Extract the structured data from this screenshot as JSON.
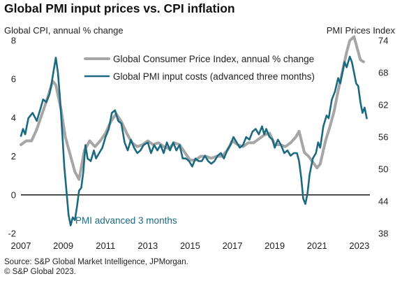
{
  "chart_data": {
    "type": "line",
    "title": "Global PMI input prices vs. CPI inflation",
    "ylabel_left": "Global  CPI, annual % change",
    "ylabel_right": "PMI Prices Index",
    "ylim_left": [
      -2,
      8
    ],
    "ylim_right": [
      38,
      74
    ],
    "yticks_left": [
      "-2",
      "0",
      "2",
      "4",
      "6",
      "8"
    ],
    "yticks_right": [
      "38",
      "44",
      "50",
      "56",
      "62",
      "68",
      "74"
    ],
    "xlim": [
      2007,
      2023.5
    ],
    "xticks": [
      "2007",
      "2009",
      "2011",
      "2013",
      "2015",
      "2017",
      "2019",
      "2021",
      "2023"
    ],
    "zero_line": true,
    "legend_position": "top-center",
    "annotation": "PMI advanced  3 months",
    "series": [
      {
        "name": "Global Consumer Price Index, annual % change",
        "axis": "left",
        "color": "#a6a6a6",
        "points": [
          [
            2007.0,
            2.6
          ],
          [
            2007.25,
            2.8
          ],
          [
            2007.5,
            2.8
          ],
          [
            2007.75,
            3.4
          ],
          [
            2008.0,
            4.2
          ],
          [
            2008.25,
            5.0
          ],
          [
            2008.5,
            5.9
          ],
          [
            2008.65,
            5.7
          ],
          [
            2008.9,
            4.4
          ],
          [
            2009.1,
            3.0
          ],
          [
            2009.35,
            2.0
          ],
          [
            2009.55,
            1.2
          ],
          [
            2009.75,
            0.8
          ],
          [
            2010.0,
            2.3
          ],
          [
            2010.25,
            2.8
          ],
          [
            2010.5,
            2.5
          ],
          [
            2010.75,
            2.8
          ],
          [
            2011.0,
            3.2
          ],
          [
            2011.25,
            3.8
          ],
          [
            2011.5,
            4.2
          ],
          [
            2011.75,
            3.8
          ],
          [
            2012.0,
            3.2
          ],
          [
            2012.25,
            2.7
          ],
          [
            2012.5,
            2.5
          ],
          [
            2012.75,
            2.6
          ],
          [
            2013.0,
            2.8
          ],
          [
            2013.25,
            2.6
          ],
          [
            2013.5,
            2.7
          ],
          [
            2013.75,
            2.5
          ],
          [
            2014.0,
            2.4
          ],
          [
            2014.25,
            2.7
          ],
          [
            2014.5,
            2.6
          ],
          [
            2014.75,
            2.2
          ],
          [
            2015.0,
            1.8
          ],
          [
            2015.25,
            1.8
          ],
          [
            2015.5,
            2.0
          ],
          [
            2015.75,
            2.0
          ],
          [
            2016.0,
            1.9
          ],
          [
            2016.25,
            2.0
          ],
          [
            2016.5,
            2.0
          ],
          [
            2016.75,
            2.3
          ],
          [
            2017.0,
            2.8
          ],
          [
            2017.25,
            2.6
          ],
          [
            2017.5,
            2.5
          ],
          [
            2017.75,
            2.7
          ],
          [
            2018.0,
            2.7
          ],
          [
            2018.25,
            2.9
          ],
          [
            2018.5,
            3.1
          ],
          [
            2018.75,
            3.2
          ],
          [
            2019.0,
            2.6
          ],
          [
            2019.25,
            2.6
          ],
          [
            2019.5,
            2.5
          ],
          [
            2019.75,
            2.7
          ],
          [
            2020.0,
            3.0
          ],
          [
            2020.15,
            3.3
          ],
          [
            2020.4,
            2.2
          ],
          [
            2020.6,
            2.0
          ],
          [
            2020.8,
            1.7
          ],
          [
            2021.0,
            1.4
          ],
          [
            2021.15,
            1.6
          ],
          [
            2021.4,
            2.8
          ],
          [
            2021.6,
            3.5
          ],
          [
            2021.8,
            4.3
          ],
          [
            2022.0,
            5.4
          ],
          [
            2022.2,
            6.4
          ],
          [
            2022.4,
            7.4
          ],
          [
            2022.55,
            8.0
          ],
          [
            2022.75,
            8.2
          ],
          [
            2022.9,
            7.6
          ],
          [
            2023.05,
            7.0
          ],
          [
            2023.2,
            6.9
          ]
        ]
      },
      {
        "name": "Global PMI input costs (advanced three months)",
        "axis": "right",
        "color": "#1b6a80",
        "points": [
          [
            2007.0,
            56.2
          ],
          [
            2007.1,
            57.5
          ],
          [
            2007.2,
            56.5
          ],
          [
            2007.35,
            59.5
          ],
          [
            2007.55,
            60.5
          ],
          [
            2007.75,
            59.0
          ],
          [
            2007.9,
            61.0
          ],
          [
            2008.05,
            63.0
          ],
          [
            2008.2,
            62.5
          ],
          [
            2008.35,
            64.0
          ],
          [
            2008.45,
            66.0
          ],
          [
            2008.55,
            68.5
          ],
          [
            2008.65,
            70.8
          ],
          [
            2008.75,
            68.0
          ],
          [
            2008.85,
            63.0
          ],
          [
            2008.95,
            57.0
          ],
          [
            2009.05,
            50.5
          ],
          [
            2009.15,
            46.0
          ],
          [
            2009.25,
            41.5
          ],
          [
            2009.35,
            39.5
          ],
          [
            2009.45,
            41.0
          ],
          [
            2009.55,
            40.5
          ],
          [
            2009.65,
            43.0
          ],
          [
            2009.75,
            46.0
          ],
          [
            2009.85,
            46.5
          ],
          [
            2009.95,
            49.5
          ],
          [
            2010.05,
            54.5
          ],
          [
            2010.15,
            52.0
          ],
          [
            2010.3,
            51.5
          ],
          [
            2010.45,
            53.5
          ],
          [
            2010.55,
            52.0
          ],
          [
            2010.7,
            53.0
          ],
          [
            2010.85,
            54.0
          ],
          [
            2011.0,
            56.0
          ],
          [
            2011.15,
            57.5
          ],
          [
            2011.3,
            60.5
          ],
          [
            2011.45,
            61.0
          ],
          [
            2011.6,
            59.0
          ],
          [
            2011.75,
            58.5
          ],
          [
            2011.9,
            55.0
          ],
          [
            2012.05,
            53.5
          ],
          [
            2012.2,
            55.5
          ],
          [
            2012.35,
            54.0
          ],
          [
            2012.5,
            53.0
          ],
          [
            2012.65,
            53.5
          ],
          [
            2012.8,
            54.5
          ],
          [
            2013.0,
            55.0
          ],
          [
            2013.15,
            53.0
          ],
          [
            2013.3,
            54.5
          ],
          [
            2013.45,
            53.5
          ],
          [
            2013.6,
            54.5
          ],
          [
            2013.75,
            53.0
          ],
          [
            2013.9,
            55.0
          ],
          [
            2014.05,
            53.5
          ],
          [
            2014.2,
            55.0
          ],
          [
            2014.35,
            53.5
          ],
          [
            2014.5,
            54.5
          ],
          [
            2014.65,
            52.0
          ],
          [
            2014.8,
            52.0
          ],
          [
            2014.95,
            51.5
          ],
          [
            2015.1,
            50.5
          ],
          [
            2015.25,
            52.0
          ],
          [
            2015.4,
            51.5
          ],
          [
            2015.55,
            51.5
          ],
          [
            2015.7,
            52.5
          ],
          [
            2015.85,
            51.5
          ],
          [
            2016.0,
            51.0
          ],
          [
            2016.15,
            51.5
          ],
          [
            2016.3,
            52.5
          ],
          [
            2016.45,
            53.0
          ],
          [
            2016.6,
            52.0
          ],
          [
            2016.75,
            53.5
          ],
          [
            2016.9,
            54.5
          ],
          [
            2017.05,
            56.0
          ],
          [
            2017.2,
            55.0
          ],
          [
            2017.35,
            54.0
          ],
          [
            2017.5,
            54.5
          ],
          [
            2017.65,
            56.0
          ],
          [
            2017.8,
            55.5
          ],
          [
            2017.95,
            57.0
          ],
          [
            2018.1,
            57.5
          ],
          [
            2018.25,
            56.5
          ],
          [
            2018.4,
            58.0
          ],
          [
            2018.5,
            56.5
          ],
          [
            2018.6,
            57.5
          ],
          [
            2018.75,
            56.0
          ],
          [
            2018.9,
            55.5
          ],
          [
            2019.0,
            54.0
          ],
          [
            2019.15,
            55.5
          ],
          [
            2019.3,
            54.5
          ],
          [
            2019.45,
            53.0
          ],
          [
            2019.6,
            53.5
          ],
          [
            2019.75,
            52.5
          ],
          [
            2019.9,
            53.0
          ],
          [
            2020.05,
            53.0
          ],
          [
            2020.15,
            51.5
          ],
          [
            2020.25,
            48.5
          ],
          [
            2020.35,
            44.5
          ],
          [
            2020.45,
            43.5
          ],
          [
            2020.55,
            45.5
          ],
          [
            2020.65,
            49.0
          ],
          [
            2020.8,
            52.0
          ],
          [
            2020.95,
            53.0
          ],
          [
            2021.05,
            55.0
          ],
          [
            2021.15,
            54.0
          ],
          [
            2021.3,
            58.0
          ],
          [
            2021.45,
            60.0
          ],
          [
            2021.55,
            59.5
          ],
          [
            2021.7,
            63.0
          ],
          [
            2021.85,
            64.5
          ],
          [
            2022.0,
            67.0
          ],
          [
            2022.1,
            66.0
          ],
          [
            2022.2,
            68.0
          ],
          [
            2022.3,
            70.0
          ],
          [
            2022.4,
            69.0
          ],
          [
            2022.55,
            71.0
          ],
          [
            2022.65,
            70.0
          ],
          [
            2022.75,
            68.0
          ],
          [
            2022.85,
            66.0
          ],
          [
            2022.95,
            65.5
          ],
          [
            2023.05,
            62.5
          ],
          [
            2023.15,
            60.5
          ],
          [
            2023.25,
            61.5
          ],
          [
            2023.35,
            59.5
          ]
        ]
      }
    ]
  },
  "source": {
    "line1": "Source: S&P Global Market Intelligence, JPMorgan.",
    "line2": "© S&P Global 2023."
  }
}
